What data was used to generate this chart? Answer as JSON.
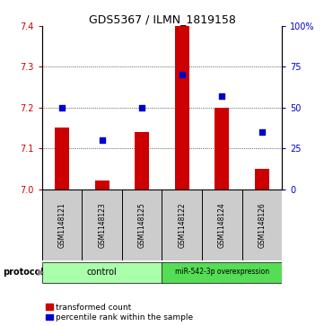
{
  "title": "GDS5367 / ILMN_1819158",
  "samples": [
    "GSM1148121",
    "GSM1148123",
    "GSM1148125",
    "GSM1148122",
    "GSM1148124",
    "GSM1148126"
  ],
  "transformed_counts": [
    7.15,
    7.02,
    7.14,
    7.4,
    7.2,
    7.05
  ],
  "percentile_ranks": [
    50,
    30,
    50,
    70,
    57,
    35
  ],
  "ylim_left": [
    7.0,
    7.4
  ],
  "ylim_right": [
    0,
    100
  ],
  "yticks_left": [
    7.0,
    7.1,
    7.2,
    7.3,
    7.4
  ],
  "yticks_right": [
    0,
    25,
    50,
    75,
    100
  ],
  "bar_color": "#cc0000",
  "dot_color": "#0000cc",
  "bar_width": 0.35,
  "control_color": "#aaffaa",
  "overexp_color": "#55dd55",
  "label_bg_color": "#cccccc",
  "legend_items": [
    {
      "label": "transformed count",
      "color": "#cc0000"
    },
    {
      "label": "percentile rank within the sample",
      "color": "#0000cc"
    }
  ],
  "background_color": "#ffffff",
  "grid_color": "#000000",
  "bar_baseline": 7.0
}
